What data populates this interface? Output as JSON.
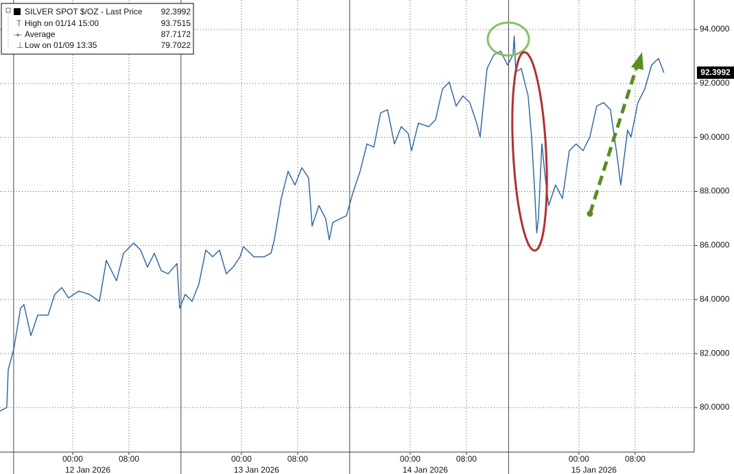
{
  "chart_data": {
    "type": "line",
    "series": [
      {
        "name": "SILVER SPOT $/OZ - Last Price",
        "color": "#1f5fbf",
        "values": [
          79.87,
          80.0,
          81.4,
          82.16,
          83.68,
          83.81,
          82.66,
          83.42,
          83.42,
          84.19,
          84.44,
          84.06,
          84.31,
          84.19,
          83.93,
          85.45,
          84.69,
          85.71,
          86.09,
          85.83,
          85.2,
          85.71,
          85.07,
          84.95,
          85.33,
          83.68,
          84.19,
          83.93,
          84.57,
          85.83,
          85.58,
          85.83,
          84.95,
          85.2,
          85.58,
          85.96,
          85.58,
          85.58,
          85.71,
          86.21,
          87.74,
          88.75,
          88.24,
          88.88,
          88.5,
          86.72,
          87.48,
          86.98,
          86.21,
          86.85,
          86.98,
          87.1,
          87.99,
          88.75,
          89.76,
          89.64,
          90.91,
          91.03,
          89.76,
          90.4,
          90.15,
          89.51,
          90.53,
          90.4,
          90.65,
          91.79,
          92.05,
          91.16,
          91.54,
          91.29,
          90.53,
          90.02,
          92.55,
          93.06,
          93.19,
          92.68,
          93.06,
          93.75,
          92.43,
          92.55,
          91.54,
          90.02,
          87.74,
          86.47,
          86.98,
          89.76,
          88.5,
          87.48,
          88.24,
          87.74,
          89.51,
          89.76,
          89.51,
          90.02,
          91.16,
          91.29,
          91.03,
          89.26,
          88.24,
          89.26,
          90.27,
          90.02,
          91.29,
          91.79,
          92.68,
          92.93,
          92.3992
        ]
      }
    ],
    "x": [
      -10.34,
      -9.37,
      -9.17,
      -8.39,
      -7.41,
      -6.93,
      -5.95,
      -4.98,
      -3.51,
      -2.54,
      -1.56,
      -0.59,
      0.88,
      2.34,
      3.8,
      4.78,
      6.24,
      7.22,
      8.68,
      9.66,
      10.63,
      11.61,
      12.59,
      13.56,
      14.83,
      15.22,
      16.0,
      16.98,
      17.95,
      18.93,
      19.9,
      20.88,
      21.85,
      22.83,
      23.8,
      24.29,
      25.76,
      27.22,
      28.2,
      28.68,
      29.66,
      30.63,
      31.61,
      32.59,
      33.56,
      34.05,
      35.02,
      36.0,
      36.49,
      36.98,
      37.95,
      38.93,
      39.9,
      40.88,
      41.85,
      42.83,
      43.8,
      44.78,
      45.76,
      46.73,
      47.71,
      48.2,
      49.17,
      50.63,
      51.61,
      52.59,
      53.56,
      54.54,
      55.51,
      56.49,
      57.46,
      57.95,
      58.93,
      59.9,
      60.88,
      61.85,
      62.63,
      62.8,
      63.02,
      63.8,
      64.78,
      65.27,
      65.76,
      66.0,
      66.24,
      66.73,
      67.22,
      67.71,
      68.68,
      69.66,
      70.63,
      71.61,
      72.59,
      73.56,
      74.54,
      75.51,
      76.49,
      77.46,
      77.95,
      78.44,
      78.93,
      79.41,
      80.39,
      81.37,
      82.34,
      83.32,
      84.1
    ],
    "xlim": [
      -10.34,
      88.4
    ],
    "xticks": [
      {
        "value": 0,
        "label": "00:00"
      },
      {
        "value": 8,
        "label": "08:00"
      },
      {
        "value": 24,
        "label": "00:00"
      },
      {
        "value": 32,
        "label": "08:00"
      },
      {
        "value": 48,
        "label": "00:00"
      },
      {
        "value": 56,
        "label": "08:00"
      },
      {
        "value": 72,
        "label": "00:00"
      },
      {
        "value": 80,
        "label": "08:00"
      }
    ],
    "xdates": [
      {
        "value": 0,
        "label": "12 Jan 2026"
      },
      {
        "value": 24,
        "label": "13 Jan 2026"
      },
      {
        "value": 48,
        "label": "14 Jan 2026"
      },
      {
        "value": 72,
        "label": "15 Jan 2026"
      }
    ],
    "session_breaks": [
      -8.4,
      15.4,
      39.4,
      62.0
    ],
    "ylim": [
      78.35,
      95.09
    ],
    "yticks": [
      {
        "value": 80,
        "label": "80.0000"
      },
      {
        "value": 82,
        "label": "82.0000"
      },
      {
        "value": 84,
        "label": "84.0000"
      },
      {
        "value": 86,
        "label": "86.0000"
      },
      {
        "value": 88,
        "label": "88.0000"
      },
      {
        "value": 90,
        "label": "90.0000"
      },
      {
        "value": 92,
        "label": "92.0000"
      },
      {
        "value": 94,
        "label": "94.0000"
      }
    ],
    "grid": true,
    "last_price": {
      "value": 92.3992,
      "label": "92.3992"
    },
    "stats": [
      {
        "label": "High on 01/14 15:00",
        "value": 93.7515
      },
      {
        "label": "Average",
        "value": 87.7172
      },
      {
        "label": "Low on 01/09 13:35",
        "value": 79.7022
      }
    ]
  }
}
